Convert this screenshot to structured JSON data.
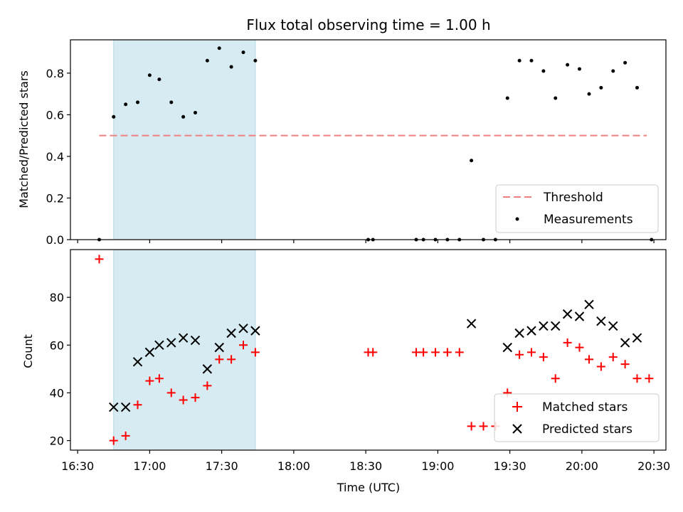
{
  "chart_data": [
    {
      "type": "scatter",
      "title": "Flux total observing time = 1.00 h",
      "xlabel": "",
      "ylabel": "Matched/Predicted stars",
      "ylim": [
        0,
        0.96
      ],
      "yticks": [
        "0.0",
        "0.2",
        "0.4",
        "0.6",
        "0.8"
      ],
      "shaded_span": [
        "16:45",
        "17:44"
      ],
      "threshold": {
        "value": 0.5,
        "x_start": "16:39",
        "x_end": "20:27"
      },
      "legend": {
        "position": "lower-right",
        "entries": [
          "Threshold",
          "Measurements"
        ]
      },
      "colors": {
        "threshold": "#f08080",
        "measurements": "#000000",
        "shade": "#add8e6"
      },
      "series": [
        {
          "name": "Measurements",
          "x": [
            "16:39",
            "16:45",
            "16:50",
            "16:55",
            "17:00",
            "17:04",
            "17:09",
            "17:14",
            "17:19",
            "17:24",
            "17:29",
            "17:34",
            "17:39",
            "17:44",
            "18:31",
            "18:33",
            "18:51",
            "18:54",
            "18:59",
            "19:04",
            "19:09",
            "19:14",
            "19:19",
            "19:24",
            "19:29",
            "19:34",
            "19:39",
            "19:44",
            "19:49",
            "19:54",
            "19:59",
            "20:03",
            "20:08",
            "20:13",
            "20:18",
            "20:23",
            "20:29"
          ],
          "y": [
            0.0,
            0.59,
            0.65,
            0.66,
            0.79,
            0.77,
            0.66,
            0.59,
            0.61,
            0.86,
            0.92,
            0.83,
            0.9,
            0.86,
            0.0,
            0.0,
            0.0,
            0.0,
            0.0,
            0.0,
            0.0,
            0.38,
            0.0,
            0.0,
            0.68,
            0.86,
            0.86,
            0.81,
            0.68,
            0.84,
            0.82,
            0.7,
            0.73,
            0.81,
            0.85,
            0.73,
            0.0
          ]
        }
      ]
    },
    {
      "type": "scatter",
      "title": "",
      "xlabel": "Time (UTC)",
      "ylabel": "Count",
      "xlim": [
        "16:27",
        "20:35"
      ],
      "ylim": [
        16,
        100
      ],
      "xticks": [
        "16:30",
        "17:00",
        "17:30",
        "18:00",
        "18:30",
        "19:00",
        "19:30",
        "20:00",
        "20:30"
      ],
      "yticks": [
        "20",
        "40",
        "60",
        "80"
      ],
      "shaded_span": [
        "16:45",
        "17:44"
      ],
      "legend": {
        "position": "lower-right",
        "entries": [
          "Matched stars",
          "Predicted stars"
        ]
      },
      "colors": {
        "matched": "#ff0000",
        "predicted": "#000000"
      },
      "series": [
        {
          "name": "Matched stars",
          "x": [
            "16:39",
            "16:45",
            "16:50",
            "16:55",
            "17:00",
            "17:04",
            "17:09",
            "17:14",
            "17:19",
            "17:24",
            "17:29",
            "17:34",
            "17:39",
            "17:44",
            "18:31",
            "18:33",
            "18:51",
            "18:54",
            "18:59",
            "19:04",
            "19:09",
            "19:14",
            "19:19",
            "19:24",
            "19:29",
            "19:34",
            "19:39",
            "19:44",
            "19:49",
            "19:54",
            "19:59",
            "20:03",
            "20:08",
            "20:13",
            "20:18",
            "20:23",
            "20:28"
          ],
          "y": [
            96,
            20,
            22,
            35,
            45,
            46,
            40,
            37,
            38,
            43,
            54,
            54,
            60,
            57,
            57,
            57,
            57,
            57,
            57,
            57,
            57,
            26,
            26,
            26,
            40,
            56,
            57,
            55,
            46,
            61,
            59,
            54,
            51,
            55,
            52,
            46,
            46
          ]
        },
        {
          "name": "Predicted stars",
          "x": [
            "16:45",
            "16:50",
            "16:55",
            "17:00",
            "17:04",
            "17:09",
            "17:14",
            "17:19",
            "17:24",
            "17:29",
            "17:34",
            "17:39",
            "17:44",
            "19:14",
            "19:29",
            "19:34",
            "19:39",
            "19:44",
            "19:49",
            "19:54",
            "19:59",
            "20:03",
            "20:08",
            "20:13",
            "20:18",
            "20:23"
          ],
          "y": [
            34,
            34,
            53,
            57,
            60,
            61,
            63,
            62,
            50,
            59,
            65,
            67,
            66,
            69,
            59,
            65,
            66,
            68,
            68,
            73,
            72,
            77,
            70,
            68,
            61,
            63
          ]
        }
      ]
    }
  ]
}
